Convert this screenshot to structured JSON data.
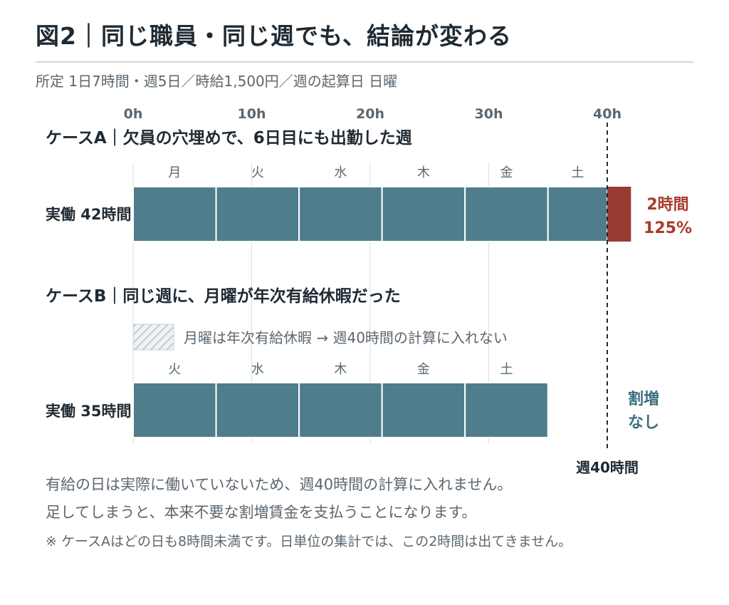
{
  "header": {
    "title": "図2｜同じ職員・同じ週でも、結論が変わる",
    "subtitle": "所定 1日7時間・週5日／時給1,500円／週の起算日 日曜"
  },
  "colors": {
    "regular": "#4f7d8c",
    "overtime": "#993b30",
    "overtime_text": "#a93a2c",
    "result_b_text": "#3b6f80",
    "grid": "#d9dee2",
    "hatch": "#b7c2ca"
  },
  "chart_data": {
    "type": "bar",
    "x_ticks": [
      "0h",
      "10h",
      "20h",
      "30h",
      "40h"
    ],
    "xlim": [
      0,
      40
    ],
    "threshold": {
      "value": 40,
      "label": "週40時間"
    },
    "cases": [
      {
        "title": "ケースA｜欠員の穴埋めで、6日目にも出勤した週",
        "row_label": "実働 42時間",
        "segments": [
          {
            "day": "月",
            "start": 0,
            "hours": 7
          },
          {
            "day": "火",
            "start": 7,
            "hours": 7
          },
          {
            "day": "水",
            "start": 14,
            "hours": 7
          },
          {
            "day": "木",
            "start": 21,
            "hours": 7
          },
          {
            "day": "金",
            "start": 28,
            "hours": 7
          },
          {
            "day": "土",
            "start": 35,
            "hours": 5
          }
        ],
        "overtime": {
          "start": 40,
          "hours": 2
        },
        "result": [
          "2時間",
          "125%"
        ]
      },
      {
        "title": "ケースB｜同じ週に、月曜が年次有給休暇だった",
        "legend": "月曜は年次有給休暇 → 週40時間の計算に入れない",
        "row_label": "実働 35時間",
        "segments": [
          {
            "day": "火",
            "start": 0,
            "hours": 7
          },
          {
            "day": "水",
            "start": 7,
            "hours": 7
          },
          {
            "day": "木",
            "start": 14,
            "hours": 7
          },
          {
            "day": "金",
            "start": 21,
            "hours": 7
          },
          {
            "day": "土",
            "start": 28,
            "hours": 7
          }
        ],
        "result": [
          "割増",
          "なし"
        ]
      }
    ]
  },
  "notes": {
    "line1": "有給の日は実際に働いていないため、週40時間の計算に入れません。",
    "line2": "足してしまうと、本来不要な割増賃金を支払うことになります。",
    "line3": "※ ケースAはどの日も8時間未満です。日単位の集計では、この2時間は出てきません。"
  }
}
